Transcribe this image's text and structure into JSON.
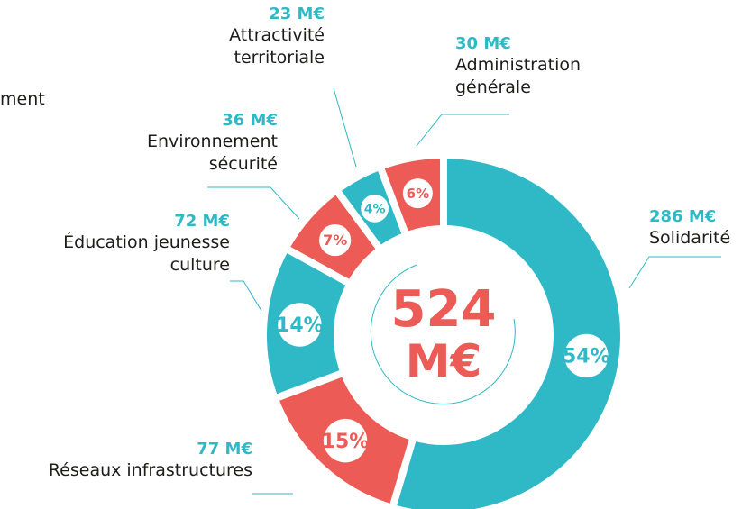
{
  "chart_data": {
    "type": "donut",
    "categories": [
      "Solidarité",
      "Réseaux infrastructures",
      "Éducation jeunesse\nculture",
      "Environnement\nsécurité",
      "Attractivité\nterritoriale",
      "Administration\ngénérale"
    ],
    "values": [
      286,
      77,
      72,
      36,
      23,
      30
    ],
    "value_labels": [
      "286 M€",
      "77 M€",
      "72 M€",
      "36 M€",
      "23 M€",
      "30 M€"
    ],
    "percents": [
      54,
      15,
      14,
      7,
      4,
      6
    ],
    "percent_labels": [
      "54%",
      "15%",
      "14%",
      "7%",
      "4%",
      "6%"
    ],
    "colors": [
      "#2fb8c6",
      "#ec5b55",
      "#2fb8c6",
      "#ec5b55",
      "#2fb8c6",
      "#ec5b55"
    ],
    "center_label": [
      "524",
      "M€"
    ],
    "annotation": "ment"
  }
}
